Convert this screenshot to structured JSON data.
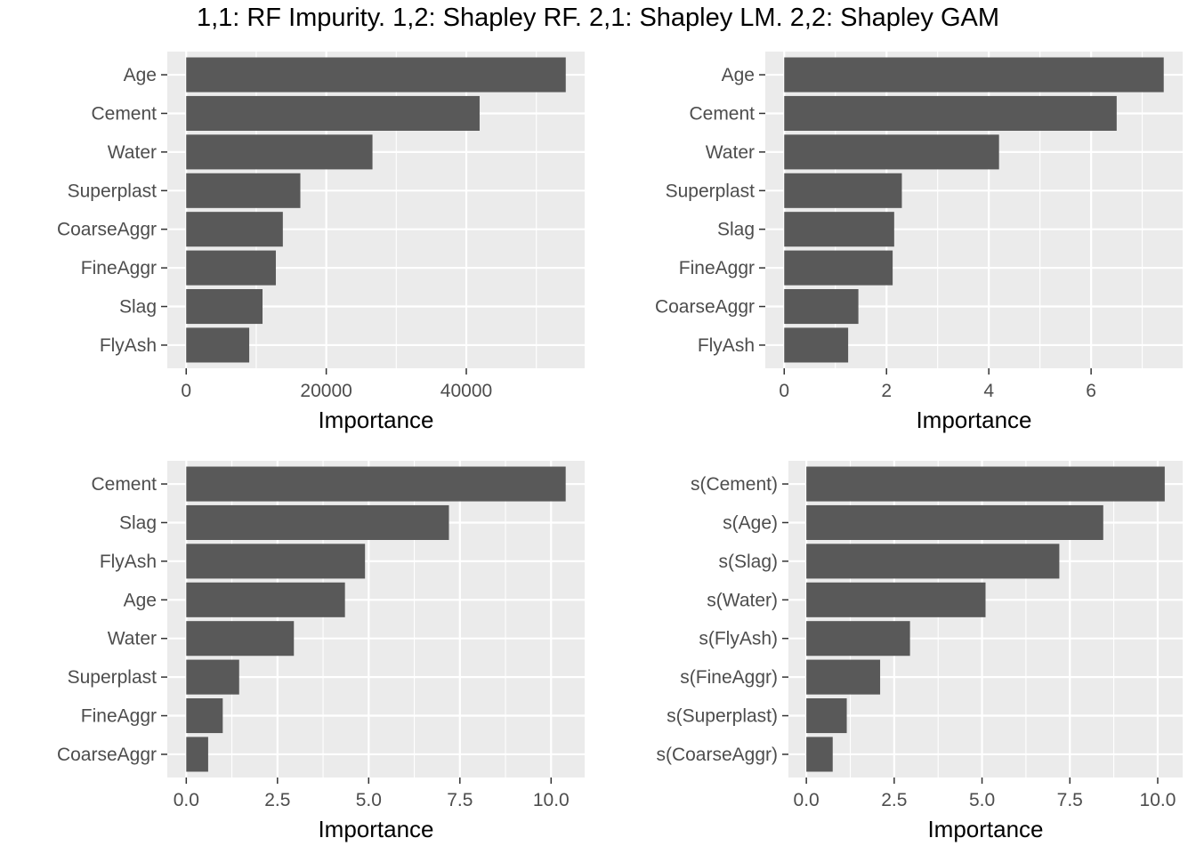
{
  "title": "1,1: RF Impurity. 1,2: Shapley RF. 2,1: Shapley LM. 2,2: Shapley GAM",
  "colors": {
    "panel_bg": "#ebebeb",
    "grid": "#ffffff",
    "bar": "#595959",
    "tick_text": "#4d4d4d",
    "tick_mark": "#333333"
  },
  "chart_data": [
    {
      "type": "bar",
      "orientation": "horizontal",
      "panel": "1,1",
      "categories": [
        "Age",
        "Cement",
        "Water",
        "Superplast",
        "CoarseAggr",
        "FineAggr",
        "Slag",
        "FlyAsh"
      ],
      "values": [
        54200,
        41900,
        26600,
        16300,
        13800,
        12800,
        10900,
        9000
      ],
      "xlabel": "Importance",
      "xlim": [
        -2700,
        56900
      ],
      "xticks": [
        0,
        20000,
        40000
      ],
      "xtick_labels": [
        "0",
        "20000",
        "40000"
      ],
      "grid": true
    },
    {
      "type": "bar",
      "orientation": "horizontal",
      "panel": "1,2",
      "categories": [
        "Age",
        "Cement",
        "Water",
        "Superplast",
        "Slag",
        "FineAggr",
        "CoarseAggr",
        "FlyAsh"
      ],
      "values": [
        7.42,
        6.5,
        4.2,
        2.3,
        2.15,
        2.12,
        1.45,
        1.25
      ],
      "xlabel": "Importance",
      "xlim": [
        -0.37,
        7.79
      ],
      "xticks": [
        0,
        2,
        4,
        6
      ],
      "xtick_labels": [
        "0",
        "2",
        "4",
        "6"
      ],
      "grid": true
    },
    {
      "type": "bar",
      "orientation": "horizontal",
      "panel": "2,1",
      "categories": [
        "Cement",
        "Slag",
        "FlyAsh",
        "Age",
        "Water",
        "Superplast",
        "FineAggr",
        "CoarseAggr"
      ],
      "values": [
        10.4,
        7.2,
        4.9,
        4.35,
        2.95,
        1.45,
        1.0,
        0.6
      ],
      "xlabel": "Importance",
      "xlim": [
        -0.52,
        10.92
      ],
      "xticks": [
        0,
        2.5,
        5,
        7.5,
        10
      ],
      "xtick_labels": [
        "0.0",
        "2.5",
        "5.0",
        "7.5",
        "10.0"
      ],
      "grid": true
    },
    {
      "type": "bar",
      "orientation": "horizontal",
      "panel": "2,2",
      "categories": [
        "s(Cement)",
        "s(Age)",
        "s(Slag)",
        "s(Water)",
        "s(FlyAsh)",
        "s(FineAggr)",
        "s(Superplast)",
        "s(CoarseAggr)"
      ],
      "values": [
        10.2,
        8.45,
        7.2,
        5.1,
        2.95,
        2.1,
        1.15,
        0.75
      ],
      "xlabel": "Importance",
      "xlim": [
        -0.51,
        10.71
      ],
      "xticks": [
        0,
        2.5,
        5,
        7.5,
        10
      ],
      "xtick_labels": [
        "0.0",
        "2.5",
        "5.0",
        "7.5",
        "10.0"
      ],
      "grid": true
    }
  ]
}
